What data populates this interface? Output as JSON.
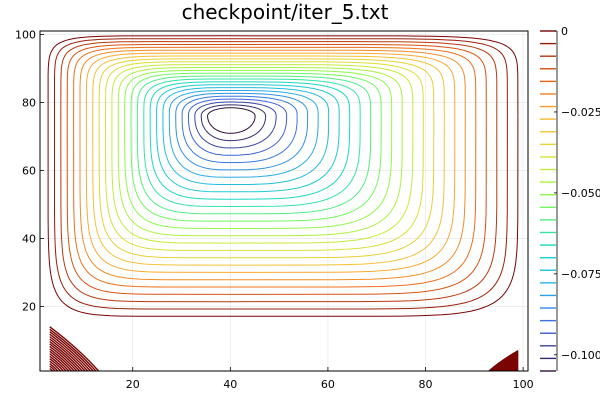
{
  "chart_data": {
    "type": "contour",
    "title": "checkpoint/iter_5.txt",
    "xlabel": "",
    "ylabel": "",
    "xlim": [
      1,
      101
    ],
    "ylim": [
      1,
      101
    ],
    "x_ticks": [
      20,
      40,
      60,
      80,
      100
    ],
    "y_ticks": [
      20,
      40,
      60,
      80,
      100
    ],
    "grid": true,
    "vortex": {
      "x": 40,
      "y": 76,
      "min_value": -0.105
    },
    "levels_count": 26,
    "colorbar": {
      "range": [
        -0.105,
        0.0
      ],
      "tick_labels": [
        "0",
        "−0.025",
        "−0.050",
        "−0.075",
        "−0.100"
      ],
      "tick_values": [
        0.0,
        -0.025,
        -0.05,
        -0.075,
        -0.1
      ],
      "colormap": "rainbow"
    },
    "colors": {
      "level_0": "#7a0403",
      "level_mid_high": "#f2a024",
      "level_mid": "#a2fc3c",
      "level_mid_low": "#1bcfd4",
      "level_min": "#30123b"
    }
  }
}
